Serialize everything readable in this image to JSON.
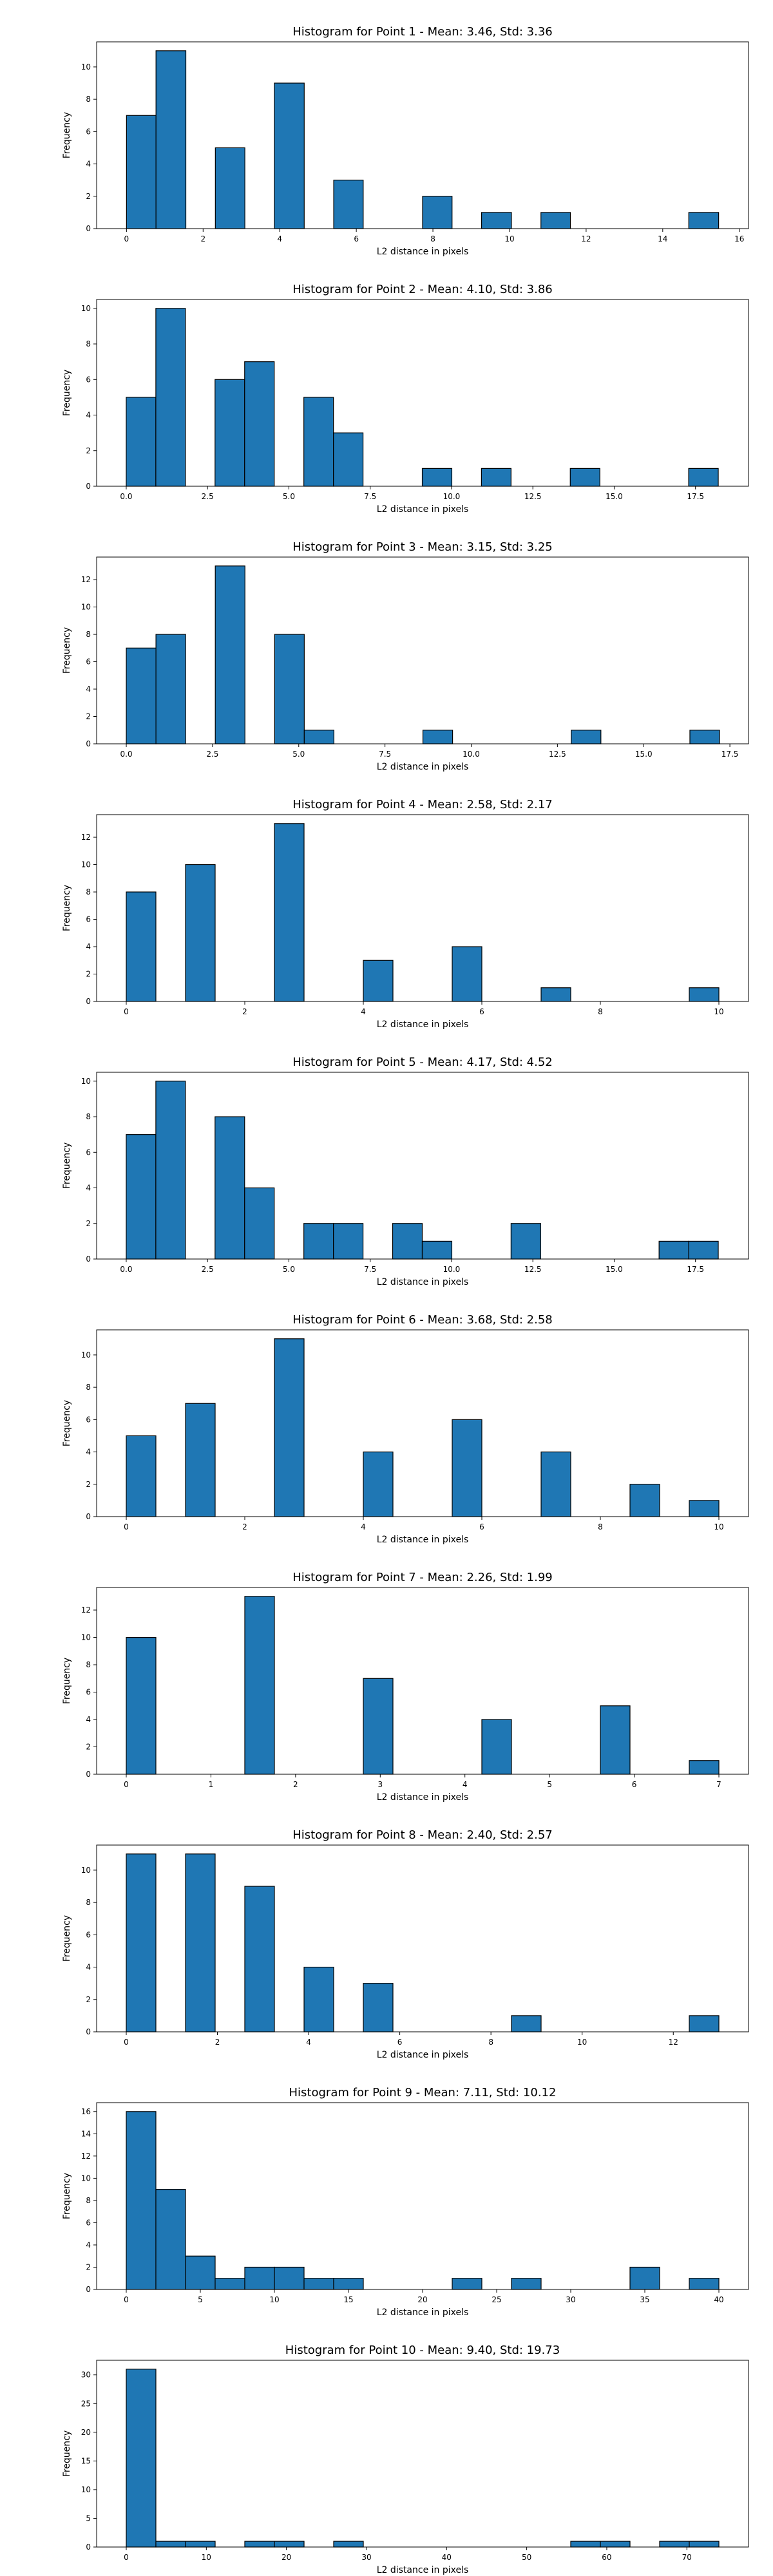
{
  "chart_data": [
    {
      "type": "bar",
      "title": "Histogram for Point 1 - Mean: 3.46, Std: 3.36",
      "xlabel": "L2 distance in pixels",
      "ylabel": "Frequency",
      "xlim": [
        -0.78,
        16.24
      ],
      "ylim": [
        0,
        11.55
      ],
      "xticks": [
        0,
        2,
        4,
        6,
        8,
        10,
        12,
        14,
        16
      ],
      "yticks": [
        0,
        2,
        4,
        6,
        8,
        10
      ],
      "bins": [
        {
          "x0": 0.0,
          "x1": 0.77,
          "count": 7
        },
        {
          "x0": 0.77,
          "x1": 1.55,
          "count": 11
        },
        {
          "x0": 2.32,
          "x1": 3.09,
          "count": 5
        },
        {
          "x0": 3.86,
          "x1": 4.64,
          "count": 9
        },
        {
          "x0": 5.41,
          "x1": 6.18,
          "count": 3
        },
        {
          "x0": 7.73,
          "x1": 8.5,
          "count": 2
        },
        {
          "x0": 9.27,
          "x1": 10.05,
          "count": 1
        },
        {
          "x0": 10.82,
          "x1": 11.59,
          "count": 1
        },
        {
          "x0": 14.68,
          "x1": 15.46,
          "count": 1
        }
      ]
    },
    {
      "type": "bar",
      "title": "Histogram for Point 2 - Mean: 4.10, Std: 3.86",
      "xlabel": "L2 distance in pixels",
      "ylabel": "Frequency",
      "xlim": [
        -0.91,
        19.13
      ],
      "ylim": [
        0,
        10.5
      ],
      "xticks": [
        0.0,
        2.5,
        5.0,
        7.5,
        10.0,
        12.5,
        15.0,
        17.5
      ],
      "xtick_labels": [
        "0.0",
        "2.5",
        "5.0",
        "7.5",
        "10.0",
        "12.5",
        "15.0",
        "17.5"
      ],
      "yticks": [
        0,
        2,
        4,
        6,
        8,
        10
      ],
      "bins": [
        {
          "x0": 0.0,
          "x1": 0.91,
          "count": 5
        },
        {
          "x0": 0.91,
          "x1": 1.82,
          "count": 10
        },
        {
          "x0": 2.73,
          "x1": 3.64,
          "count": 6
        },
        {
          "x0": 3.64,
          "x1": 4.55,
          "count": 7
        },
        {
          "x0": 5.46,
          "x1": 6.37,
          "count": 5
        },
        {
          "x0": 6.37,
          "x1": 7.28,
          "count": 3
        },
        {
          "x0": 9.1,
          "x1": 10.01,
          "count": 1
        },
        {
          "x0": 10.92,
          "x1": 11.83,
          "count": 1
        },
        {
          "x0": 13.65,
          "x1": 14.56,
          "count": 1
        },
        {
          "x0": 17.29,
          "x1": 18.2,
          "count": 1
        }
      ]
    },
    {
      "type": "bar",
      "title": "Histogram for Point 3 - Mean: 3.15, Std: 3.25",
      "xlabel": "L2 distance in pixels",
      "ylabel": "Frequency",
      "xlim": [
        -0.86,
        18.04
      ],
      "ylim": [
        0,
        13.65
      ],
      "xticks": [
        0.0,
        2.5,
        5.0,
        7.5,
        10.0,
        12.5,
        15.0,
        17.5
      ],
      "xtick_labels": [
        "0.0",
        "2.5",
        "5.0",
        "7.5",
        "10.0",
        "12.5",
        "15.0",
        "17.5"
      ],
      "yticks": [
        0,
        2,
        4,
        6,
        8,
        10,
        12
      ],
      "bins": [
        {
          "x0": 0.0,
          "x1": 0.86,
          "count": 7
        },
        {
          "x0": 0.86,
          "x1": 1.72,
          "count": 8
        },
        {
          "x0": 2.58,
          "x1": 3.44,
          "count": 13
        },
        {
          "x0": 4.3,
          "x1": 5.16,
          "count": 8
        },
        {
          "x0": 5.16,
          "x1": 6.02,
          "count": 1
        },
        {
          "x0": 8.6,
          "x1": 9.46,
          "count": 1
        },
        {
          "x0": 12.9,
          "x1": 13.76,
          "count": 1
        },
        {
          "x0": 16.34,
          "x1": 17.2,
          "count": 1
        }
      ]
    },
    {
      "type": "bar",
      "title": "Histogram for Point 4 - Mean: 2.58, Std: 2.17",
      "xlabel": "L2 distance in pixels",
      "ylabel": "Frequency",
      "xlim": [
        -0.5,
        10.5
      ],
      "ylim": [
        0,
        13.65
      ],
      "xticks": [
        0,
        2,
        4,
        6,
        8,
        10
      ],
      "yticks": [
        0,
        2,
        4,
        6,
        8,
        10,
        12
      ],
      "bins": [
        {
          "x0": 0.0,
          "x1": 0.5,
          "count": 8
        },
        {
          "x0": 1.0,
          "x1": 1.5,
          "count": 10
        },
        {
          "x0": 2.5,
          "x1": 3.0,
          "count": 13
        },
        {
          "x0": 4.0,
          "x1": 4.5,
          "count": 3
        },
        {
          "x0": 5.5,
          "x1": 6.0,
          "count": 4
        },
        {
          "x0": 7.0,
          "x1": 7.5,
          "count": 1
        },
        {
          "x0": 9.5,
          "x1": 10.0,
          "count": 1
        }
      ]
    },
    {
      "type": "bar",
      "title": "Histogram for Point 5 - Mean: 4.17, Std: 4.52",
      "xlabel": "L2 distance in pixels",
      "ylabel": "Frequency",
      "xlim": [
        -0.91,
        19.13
      ],
      "ylim": [
        0,
        10.5
      ],
      "xticks": [
        0.0,
        2.5,
        5.0,
        7.5,
        10.0,
        12.5,
        15.0,
        17.5
      ],
      "xtick_labels": [
        "0.0",
        "2.5",
        "5.0",
        "7.5",
        "10.0",
        "12.5",
        "15.0",
        "17.5"
      ],
      "yticks": [
        0,
        2,
        4,
        6,
        8,
        10
      ],
      "bins": [
        {
          "x0": 0.0,
          "x1": 0.91,
          "count": 7
        },
        {
          "x0": 0.91,
          "x1": 1.82,
          "count": 10
        },
        {
          "x0": 2.73,
          "x1": 3.64,
          "count": 8
        },
        {
          "x0": 3.64,
          "x1": 4.55,
          "count": 4
        },
        {
          "x0": 5.46,
          "x1": 6.37,
          "count": 2
        },
        {
          "x0": 6.37,
          "x1": 7.28,
          "count": 2
        },
        {
          "x0": 8.19,
          "x1": 9.1,
          "count": 2
        },
        {
          "x0": 9.1,
          "x1": 10.01,
          "count": 1
        },
        {
          "x0": 11.83,
          "x1": 12.74,
          "count": 2
        },
        {
          "x0": 16.38,
          "x1": 17.29,
          "count": 1
        },
        {
          "x0": 17.29,
          "x1": 18.2,
          "count": 1
        }
      ]
    },
    {
      "type": "bar",
      "title": "Histogram for Point 6 - Mean: 3.68, Std: 2.58",
      "xlabel": "L2 distance in pixels",
      "ylabel": "Frequency",
      "xlim": [
        -0.5,
        10.5
      ],
      "ylim": [
        0,
        11.55
      ],
      "xticks": [
        0,
        2,
        4,
        6,
        8,
        10
      ],
      "yticks": [
        0,
        2,
        4,
        6,
        8,
        10
      ],
      "bins": [
        {
          "x0": 0.0,
          "x1": 0.5,
          "count": 5
        },
        {
          "x0": 1.0,
          "x1": 1.5,
          "count": 7
        },
        {
          "x0": 2.5,
          "x1": 3.0,
          "count": 11
        },
        {
          "x0": 4.0,
          "x1": 4.5,
          "count": 4
        },
        {
          "x0": 5.5,
          "x1": 6.0,
          "count": 6
        },
        {
          "x0": 7.0,
          "x1": 7.5,
          "count": 4
        },
        {
          "x0": 8.5,
          "x1": 9.0,
          "count": 2
        },
        {
          "x0": 9.5,
          "x1": 10.0,
          "count": 1
        }
      ]
    },
    {
      "type": "bar",
      "title": "Histogram for Point 7 - Mean: 2.26, Std: 1.99",
      "xlabel": "L2 distance in pixels",
      "ylabel": "Frequency",
      "xlim": [
        -0.35,
        7.35
      ],
      "ylim": [
        0,
        13.65
      ],
      "xticks": [
        0,
        1,
        2,
        3,
        4,
        5,
        6,
        7
      ],
      "yticks": [
        0,
        2,
        4,
        6,
        8,
        10,
        12
      ],
      "bins": [
        {
          "x0": 0.0,
          "x1": 0.35,
          "count": 10
        },
        {
          "x0": 1.4,
          "x1": 1.75,
          "count": 13
        },
        {
          "x0": 2.8,
          "x1": 3.15,
          "count": 7
        },
        {
          "x0": 4.2,
          "x1": 4.55,
          "count": 4
        },
        {
          "x0": 5.6,
          "x1": 5.95,
          "count": 5
        },
        {
          "x0": 6.65,
          "x1": 7.0,
          "count": 1
        }
      ]
    },
    {
      "type": "bar",
      "title": "Histogram for Point 8 - Mean: 2.40, Std: 2.57",
      "xlabel": "L2 distance in pixels",
      "ylabel": "Frequency",
      "xlim": [
        -0.65,
        13.65
      ],
      "ylim": [
        0,
        11.55
      ],
      "xticks": [
        0,
        2,
        4,
        6,
        8,
        10,
        12
      ],
      "yticks": [
        0,
        2,
        4,
        6,
        8,
        10
      ],
      "bins": [
        {
          "x0": 0.0,
          "x1": 0.65,
          "count": 11
        },
        {
          "x0": 1.3,
          "x1": 1.95,
          "count": 11
        },
        {
          "x0": 2.6,
          "x1": 3.25,
          "count": 9
        },
        {
          "x0": 3.9,
          "x1": 4.55,
          "count": 4
        },
        {
          "x0": 5.2,
          "x1": 5.85,
          "count": 3
        },
        {
          "x0": 8.45,
          "x1": 9.1,
          "count": 1
        },
        {
          "x0": 12.35,
          "x1": 13.0,
          "count": 1
        }
      ]
    },
    {
      "type": "bar",
      "title": "Histogram for Point 9 - Mean: 7.11, Std: 10.12",
      "xlabel": "L2 distance in pixels",
      "ylabel": "Frequency",
      "xlim": [
        -2.0,
        42.0
      ],
      "ylim": [
        0,
        16.8
      ],
      "xticks": [
        0,
        5,
        10,
        15,
        20,
        25,
        30,
        35,
        40
      ],
      "yticks": [
        0,
        2,
        4,
        6,
        8,
        10,
        12,
        14,
        16
      ],
      "bins": [
        {
          "x0": 0.0,
          "x1": 2.0,
          "count": 16
        },
        {
          "x0": 2.0,
          "x1": 4.0,
          "count": 9
        },
        {
          "x0": 4.0,
          "x1": 6.0,
          "count": 3
        },
        {
          "x0": 6.0,
          "x1": 8.0,
          "count": 1
        },
        {
          "x0": 8.0,
          "x1": 10.0,
          "count": 2
        },
        {
          "x0": 10.0,
          "x1": 12.0,
          "count": 2
        },
        {
          "x0": 12.0,
          "x1": 14.0,
          "count": 1
        },
        {
          "x0": 14.0,
          "x1": 16.0,
          "count": 1
        },
        {
          "x0": 22.0,
          "x1": 24.0,
          "count": 1
        },
        {
          "x0": 26.0,
          "x1": 28.0,
          "count": 1
        },
        {
          "x0": 34.0,
          "x1": 36.0,
          "count": 2
        },
        {
          "x0": 38.0,
          "x1": 40.0,
          "count": 1
        }
      ]
    },
    {
      "type": "bar",
      "title": "Histogram for Point 10 - Mean: 9.40, Std: 19.73",
      "xlabel": "L2 distance in pixels",
      "ylabel": "Frequency",
      "xlim": [
        -3.7,
        77.7
      ],
      "ylim": [
        0,
        32.55
      ],
      "xticks": [
        0,
        10,
        20,
        30,
        40,
        50,
        60,
        70
      ],
      "yticks": [
        0,
        5,
        10,
        15,
        20,
        25,
        30
      ],
      "bins": [
        {
          "x0": 0.0,
          "x1": 3.7,
          "count": 31
        },
        {
          "x0": 3.7,
          "x1": 7.4,
          "count": 1
        },
        {
          "x0": 7.4,
          "x1": 11.1,
          "count": 1
        },
        {
          "x0": 14.8,
          "x1": 18.5,
          "count": 1
        },
        {
          "x0": 18.5,
          "x1": 22.2,
          "count": 1
        },
        {
          "x0": 25.9,
          "x1": 29.6,
          "count": 1
        },
        {
          "x0": 55.5,
          "x1": 59.2,
          "count": 1
        },
        {
          "x0": 59.2,
          "x1": 62.9,
          "count": 1
        },
        {
          "x0": 66.6,
          "x1": 70.3,
          "count": 1
        },
        {
          "x0": 70.3,
          "x1": 74.0,
          "count": 1
        }
      ]
    }
  ],
  "colors": {
    "bar_fill": "#1f77b4",
    "bar_edge": "#000000",
    "axis": "#000000",
    "background": "#ffffff"
  }
}
